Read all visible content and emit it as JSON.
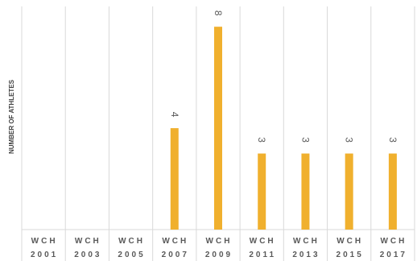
{
  "chart_data": {
    "type": "bar",
    "title": "",
    "xlabel": "",
    "ylabel": "NUMBER OF ATHLETES",
    "categories": [
      [
        "WCH",
        "2001"
      ],
      [
        "WCH",
        "2003"
      ],
      [
        "WCH",
        "2005"
      ],
      [
        "WCH",
        "2007"
      ],
      [
        "WCH",
        "2009"
      ],
      [
        "WCH",
        "2011"
      ],
      [
        "WCH",
        "2013"
      ],
      [
        "WCH",
        "2015"
      ],
      [
        "WCH",
        "2017"
      ]
    ],
    "values": [
      null,
      null,
      null,
      4,
      8,
      3,
      3,
      3,
      3
    ],
    "ylim": [
      0,
      8.8
    ],
    "grid": "vertical category separators",
    "legend": "none",
    "colors": {
      "bar": "#F0B02E",
      "grid": "#D9D9D9",
      "text": "#595959"
    }
  }
}
